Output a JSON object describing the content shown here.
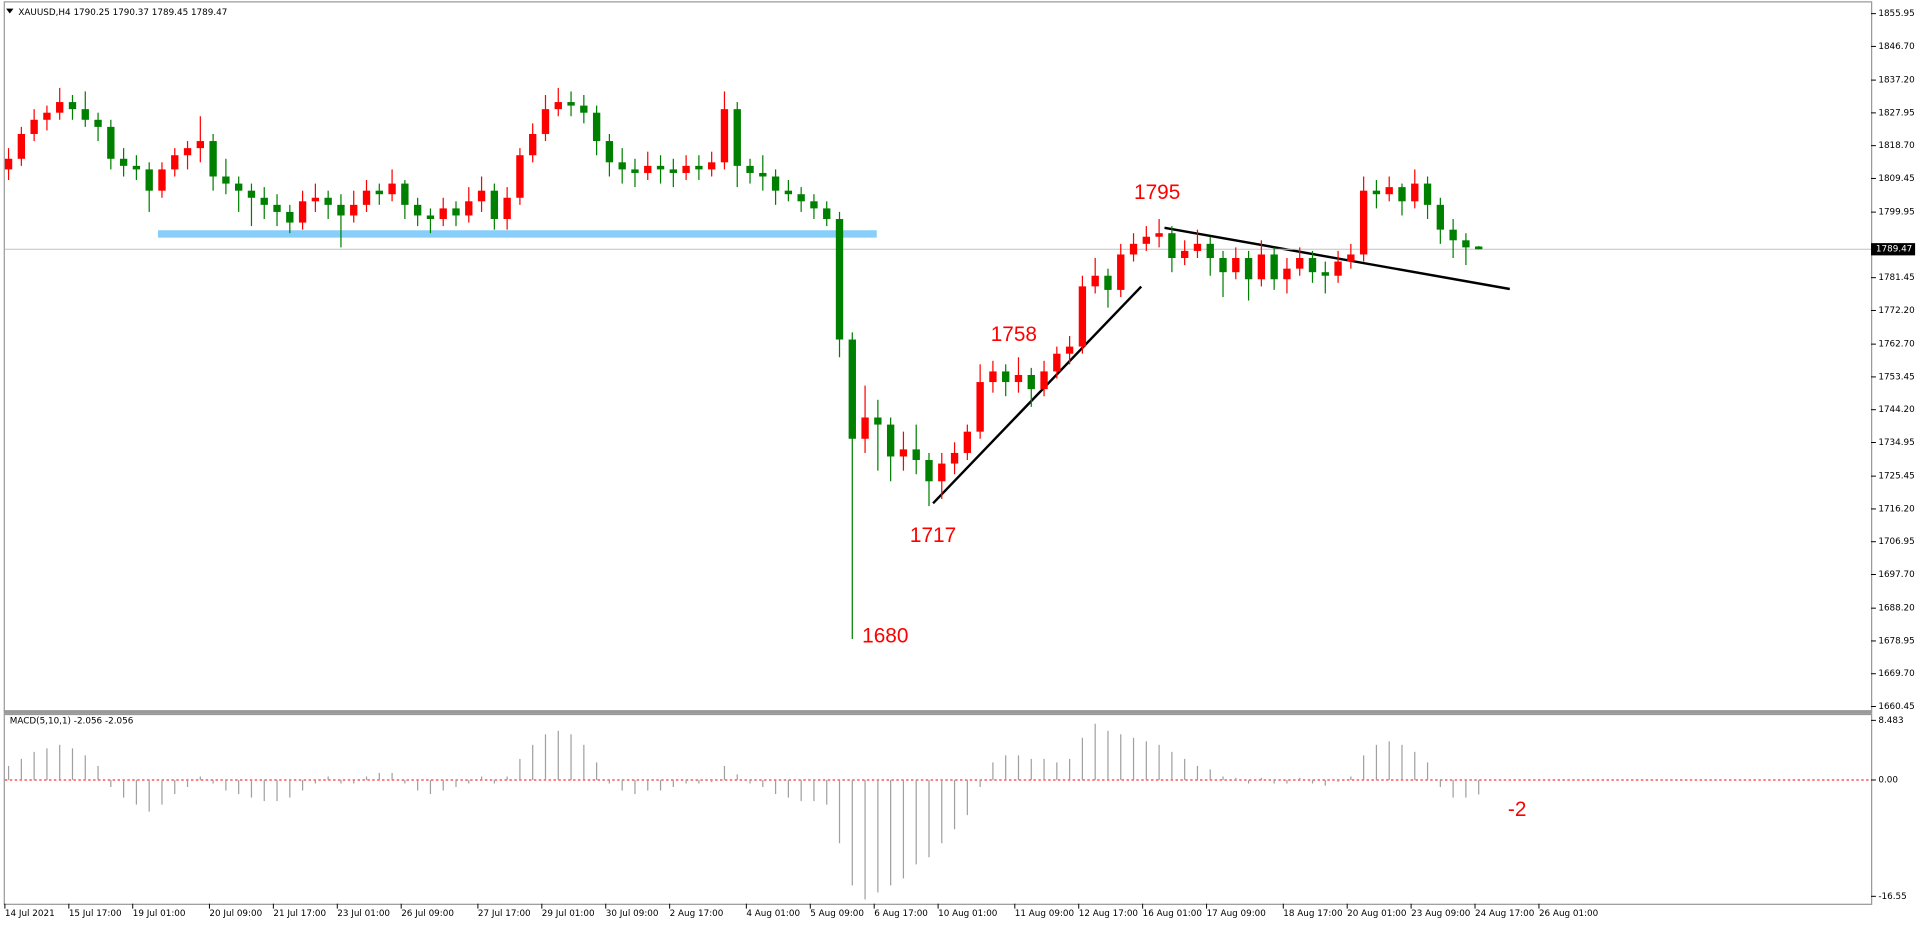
{
  "chart_data": [
    {
      "type": "candlestick",
      "title": "XAUUSD,H4  1790.25 1790.37 1789.45 1789.47",
      "up_color": "#ff0000",
      "down_color": "#008000",
      "candles": [
        [
          1812,
          1818,
          1809,
          1815
        ],
        [
          1815,
          1824,
          1813,
          1822
        ],
        [
          1822,
          1829,
          1820,
          1826
        ],
        [
          1826,
          1830,
          1823,
          1828
        ],
        [
          1828,
          1835,
          1826,
          1831
        ],
        [
          1831,
          1833,
          1826,
          1829
        ],
        [
          1829,
          1834,
          1824,
          1826
        ],
        [
          1826,
          1828,
          1820,
          1824
        ],
        [
          1824,
          1826,
          1812,
          1815
        ],
        [
          1815,
          1818,
          1810,
          1813
        ],
        [
          1813,
          1816,
          1809,
          1812
        ],
        [
          1812,
          1814,
          1800,
          1806
        ],
        [
          1806,
          1814,
          1804,
          1812
        ],
        [
          1812,
          1818,
          1810,
          1816
        ],
        [
          1816,
          1820,
          1812,
          1818
        ],
        [
          1818,
          1827,
          1814,
          1820
        ],
        [
          1820,
          1822,
          1806,
          1810
        ],
        [
          1810,
          1815,
          1805,
          1808
        ],
        [
          1808,
          1810,
          1800,
          1806
        ],
        [
          1806,
          1808,
          1796,
          1804
        ],
        [
          1804,
          1807,
          1798,
          1802
        ],
        [
          1802,
          1805,
          1796,
          1800
        ],
        [
          1800,
          1802,
          1794,
          1797
        ],
        [
          1797,
          1806,
          1795,
          1803
        ],
        [
          1803,
          1808,
          1800,
          1804
        ],
        [
          1804,
          1806,
          1798,
          1802
        ],
        [
          1802,
          1805,
          1790,
          1799
        ],
        [
          1799,
          1806,
          1797,
          1802
        ],
        [
          1802,
          1809,
          1800,
          1806
        ],
        [
          1806,
          1808,
          1802,
          1805
        ],
        [
          1805,
          1812,
          1803,
          1808
        ],
        [
          1808,
          1809,
          1798,
          1802
        ],
        [
          1802,
          1804,
          1796,
          1799
        ],
        [
          1799,
          1801,
          1794,
          1798
        ],
        [
          1798,
          1804,
          1796,
          1801
        ],
        [
          1801,
          1803,
          1796,
          1799
        ],
        [
          1799,
          1807,
          1797,
          1803
        ],
        [
          1803,
          1810,
          1800,
          1806
        ],
        [
          1806,
          1808,
          1795,
          1798
        ],
        [
          1798,
          1807,
          1795,
          1804
        ],
        [
          1804,
          1818,
          1802,
          1816
        ],
        [
          1816,
          1825,
          1814,
          1822
        ],
        [
          1822,
          1833,
          1820,
          1829
        ],
        [
          1829,
          1835,
          1827,
          1831
        ],
        [
          1831,
          1834,
          1827,
          1830
        ],
        [
          1830,
          1833,
          1825,
          1828
        ],
        [
          1828,
          1830,
          1816,
          1820
        ],
        [
          1820,
          1822,
          1810,
          1814
        ],
        [
          1814,
          1818,
          1808,
          1812
        ],
        [
          1812,
          1815,
          1807,
          1811
        ],
        [
          1811,
          1817,
          1809,
          1813
        ],
        [
          1813,
          1816,
          1808,
          1812
        ],
        [
          1812,
          1815,
          1807,
          1811
        ],
        [
          1811,
          1816,
          1809,
          1813
        ],
        [
          1813,
          1816,
          1809,
          1812
        ],
        [
          1812,
          1817,
          1810,
          1814
        ],
        [
          1814,
          1834,
          1812,
          1829
        ],
        [
          1829,
          1831,
          1807,
          1813
        ],
        [
          1813,
          1815,
          1808,
          1811
        ],
        [
          1811,
          1816,
          1806,
          1810
        ],
        [
          1810,
          1812,
          1802,
          1806
        ],
        [
          1806,
          1809,
          1803,
          1805
        ],
        [
          1805,
          1807,
          1800,
          1803
        ],
        [
          1803,
          1805,
          1798,
          1801
        ],
        [
          1801,
          1803,
          1796,
          1798
        ],
        [
          1798,
          1800,
          1759,
          1764
        ],
        [
          1764,
          1766,
          1679.5,
          1736
        ],
        [
          1736,
          1751,
          1732,
          1742
        ],
        [
          1742,
          1747,
          1727,
          1740
        ],
        [
          1740,
          1742,
          1724,
          1731
        ],
        [
          1731,
          1738,
          1727,
          1733
        ],
        [
          1733,
          1740,
          1726,
          1730
        ],
        [
          1730,
          1732,
          1717,
          1724
        ],
        [
          1724,
          1732,
          1719,
          1729
        ],
        [
          1729,
          1735,
          1726,
          1732
        ],
        [
          1732,
          1740,
          1730,
          1738
        ],
        [
          1738,
          1757,
          1736,
          1752
        ],
        [
          1752,
          1758,
          1749,
          1755
        ],
        [
          1755,
          1757,
          1748,
          1752
        ],
        [
          1752,
          1759,
          1749,
          1754
        ],
        [
          1754,
          1756,
          1745,
          1750
        ],
        [
          1750,
          1758,
          1748,
          1755
        ],
        [
          1755,
          1762,
          1753,
          1760
        ],
        [
          1760,
          1765,
          1757,
          1762
        ],
        [
          1762,
          1782,
          1760,
          1779
        ],
        [
          1779,
          1787,
          1777,
          1782
        ],
        [
          1782,
          1784,
          1773,
          1778
        ],
        [
          1778,
          1791,
          1776,
          1788
        ],
        [
          1788,
          1794,
          1786,
          1791
        ],
        [
          1791,
          1796,
          1789,
          1793
        ],
        [
          1793,
          1798,
          1790,
          1794
        ],
        [
          1794,
          1796,
          1783,
          1787
        ],
        [
          1787,
          1792,
          1785,
          1789
        ],
        [
          1789,
          1795,
          1787,
          1791
        ],
        [
          1791,
          1793,
          1782,
          1787
        ],
        [
          1787,
          1789,
          1776,
          1783
        ],
        [
          1783,
          1790,
          1781,
          1787
        ],
        [
          1787,
          1789,
          1775,
          1781
        ],
        [
          1781,
          1792,
          1779,
          1788
        ],
        [
          1788,
          1790,
          1778,
          1781
        ],
        [
          1781,
          1787,
          1777,
          1784
        ],
        [
          1784,
          1790,
          1782,
          1787
        ],
        [
          1787,
          1789,
          1780,
          1783
        ],
        [
          1783,
          1786,
          1777,
          1782
        ],
        [
          1782,
          1789,
          1780,
          1786
        ],
        [
          1786,
          1791,
          1784,
          1788
        ],
        [
          1788,
          1810,
          1786,
          1806
        ],
        [
          1806,
          1809,
          1801,
          1805
        ],
        [
          1805,
          1810,
          1803,
          1807
        ],
        [
          1807,
          1808,
          1799,
          1803
        ],
        [
          1803,
          1812,
          1801,
          1808
        ],
        [
          1808,
          1810,
          1798,
          1802
        ],
        [
          1802,
          1804,
          1791,
          1795
        ],
        [
          1795,
          1798,
          1787,
          1792
        ],
        [
          1792,
          1794,
          1785,
          1790
        ],
        [
          1790.25,
          1790.37,
          1789.45,
          1789.47
        ]
      ],
      "xticks": [
        {
          "value": 0,
          "label": "14 Jul 2021"
        },
        {
          "value": 5,
          "label": "15 Jul 17:00"
        },
        {
          "value": 10,
          "label": "19 Jul 01:00"
        },
        {
          "value": 16,
          "label": "20 Jul 09:00"
        },
        {
          "value": 21,
          "label": "21 Jul 17:00"
        },
        {
          "value": 26,
          "label": "23 Jul 01:00"
        },
        {
          "value": 31,
          "label": "26 Jul 09:00"
        },
        {
          "value": 37,
          "label": "27 Jul 17:00"
        },
        {
          "value": 42,
          "label": "29 Jul 01:00"
        },
        {
          "value": 47,
          "label": "30 Jul 09:00"
        },
        {
          "value": 52,
          "label": "2 Aug 17:00"
        },
        {
          "value": 58,
          "label": "4 Aug 01:00"
        },
        {
          "value": 63,
          "label": "5 Aug 09:00"
        },
        {
          "value": 68,
          "label": "6 Aug 17:00"
        },
        {
          "value": 73,
          "label": "10 Aug 01:00"
        },
        {
          "value": 79,
          "label": "11 Aug 09:00"
        },
        {
          "value": 84,
          "label": "12 Aug 17:00"
        },
        {
          "value": 89,
          "label": "16 Aug 01:00"
        },
        {
          "value": 94,
          "label": "17 Aug 09:00"
        },
        {
          "value": 100,
          "label": "18 Aug 17:00"
        },
        {
          "value": 105,
          "label": "20 Aug 01:00"
        },
        {
          "value": 110,
          "label": "23 Aug 09:00"
        },
        {
          "value": 115,
          "label": "24 Aug 17:00"
        },
        {
          "value": 120,
          "label": "26 Aug 01:00"
        }
      ],
      "ylim": [
        1659.4,
        1859.1
      ],
      "yticks": [
        1855.95,
        {
          "value": 1846.7,
          "label": "1846.70"
        },
        {
          "value": 1837.2,
          "label": "1837.20"
        },
        1827.95,
        {
          "value": 1818.7,
          "label": "1818.70"
        },
        1809.45,
        1799.95,
        1781.45,
        {
          "value": 1772.2,
          "label": "1772.20"
        },
        {
          "value": 1762.7,
          "label": "1762.70"
        },
        1753.45,
        {
          "value": 1744.2,
          "label": "1744.20"
        },
        1734.95,
        1725.45,
        {
          "value": 1716.2,
          "label": "1716.20"
        },
        1706.95,
        {
          "value": 1697.7,
          "label": "1697.70"
        },
        {
          "value": 1688.2,
          "label": "1688.20"
        },
        1678.95,
        {
          "value": 1669.7,
          "label": "1669.70"
        },
        1660.45
      ],
      "last_price": 1789.47,
      "annotations": [
        "1795",
        "1758",
        "1717",
        "1680"
      ]
    },
    {
      "type": "bar",
      "title": "MACD(5,10,1) -2.056 -2.056",
      "color": "#a0a0a0",
      "values": [
        2,
        3,
        4,
        4.5,
        5,
        4.5,
        3.5,
        2,
        -1,
        -2.5,
        -3.5,
        -4.5,
        -3.5,
        -2,
        -1,
        0.5,
        -0.5,
        -1.5,
        -2,
        -2.5,
        -3,
        -3,
        -2.5,
        -1.5,
        -0.5,
        0.5,
        -0.5,
        -0.5,
        0.5,
        1,
        1,
        -0.5,
        -1.5,
        -2,
        -1.5,
        -1,
        -0.5,
        0.5,
        -0.5,
        0.5,
        3,
        5,
        6.5,
        7,
        6.5,
        5,
        2.5,
        -0.5,
        -1.5,
        -2,
        -1.5,
        -1.5,
        -1,
        -0.5,
        -0.5,
        -0.3,
        2,
        0.8,
        -0.5,
        -1,
        -2,
        -2.5,
        -3,
        -3,
        -3.5,
        -9,
        -15,
        -17,
        -16,
        -15,
        -14,
        -12,
        -11,
        -9,
        -7,
        -5,
        -1,
        2.5,
        3.5,
        3.5,
        3,
        3,
        2.5,
        3,
        6,
        8,
        7,
        6.5,
        6,
        5.5,
        5,
        4,
        3,
        2,
        1.5,
        0.5,
        0.3,
        -0.5,
        0.3,
        -0.5,
        -0.5,
        0.3,
        -0.5,
        -0.8,
        -0.3,
        0.5,
        3.5,
        5,
        5.5,
        5,
        4,
        2.5,
        -1,
        -2.5,
        -2.5,
        -2.056
      ],
      "ylim": [
        -17.6,
        9.4
      ],
      "yticks": [
        8.483,
        {
          "value": 0,
          "label": "0.00"
        },
        -16.55
      ],
      "annotations": [
        "-2"
      ]
    }
  ]
}
